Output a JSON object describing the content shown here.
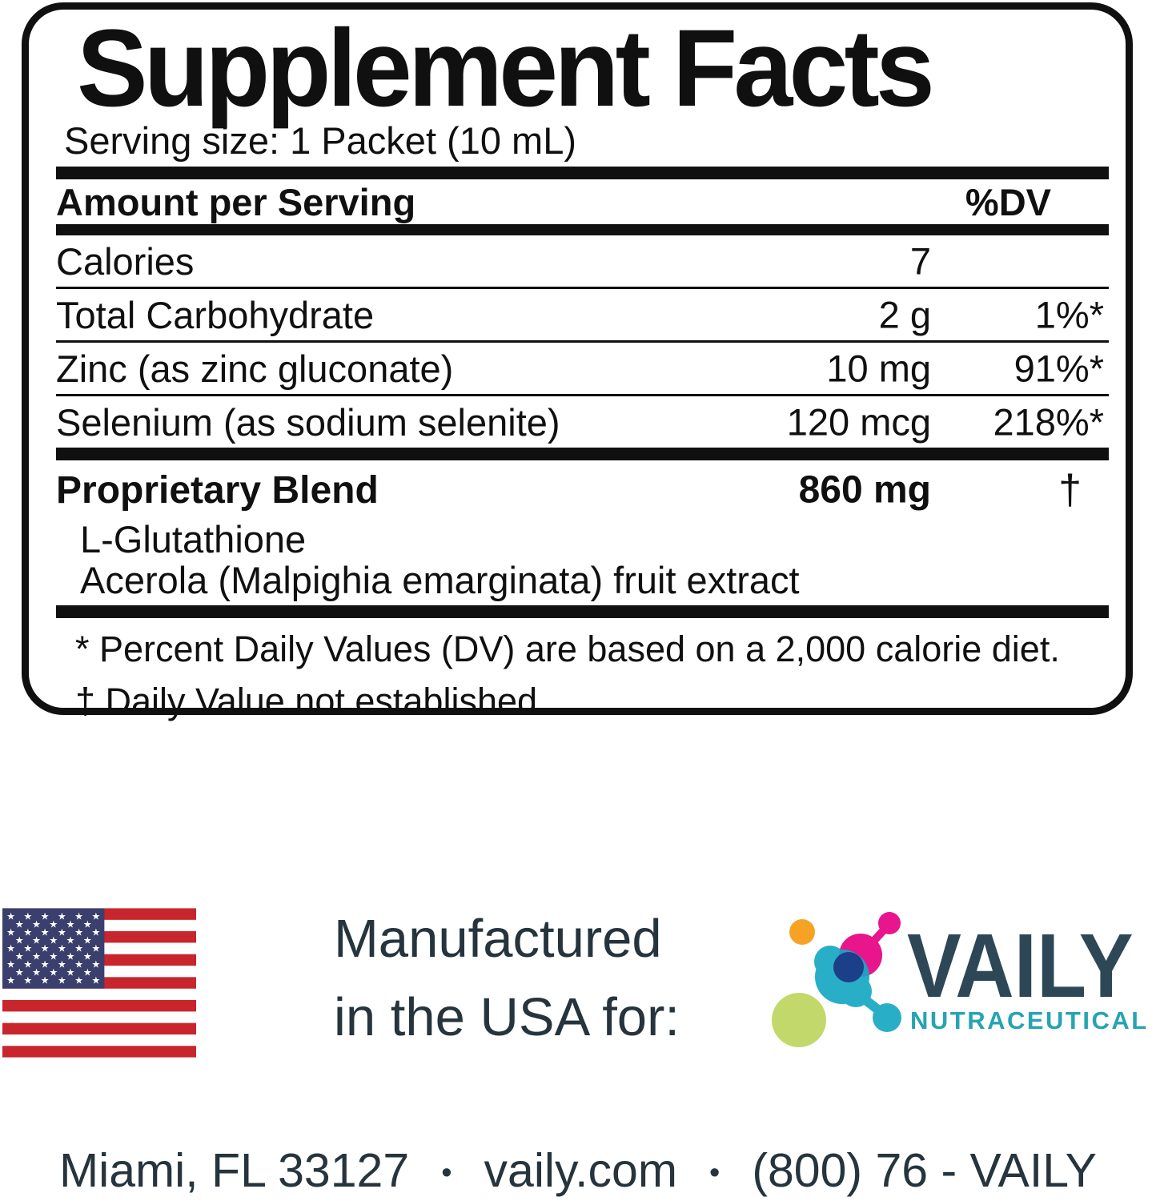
{
  "label": {
    "title": "Supplement Facts",
    "serving_size": "Serving size: 1 Packet (10 mL)",
    "header": {
      "amount_label": "Amount per Serving",
      "dv_label": "%DV"
    },
    "rows": [
      {
        "name": "Calories",
        "amount": "7",
        "dv": ""
      },
      {
        "name": "Total Carbohydrate",
        "amount": "2 g",
        "dv": "1%*"
      },
      {
        "name": "Zinc (as zinc gluconate)",
        "amount": "10 mg",
        "dv": "91%*"
      },
      {
        "name": "Selenium (as sodium selenite)",
        "amount": "120 mcg",
        "dv": "218%*"
      }
    ],
    "proprietary": {
      "name": "Proprietary Blend",
      "amount": "860 mg",
      "dv": "†",
      "ingredients": [
        "L-Glutathione",
        "Acerola (Malpighia emarginata) fruit extract"
      ]
    },
    "footnotes": [
      "* Percent Daily Values (DV) are based on a 2,000 calorie diet.",
      "† Daily Value not established"
    ]
  },
  "manufactured": {
    "line1": "Manufactured",
    "line2": "in the USA for:"
  },
  "brand": {
    "name": "VAILY",
    "subtitle": "NUTRACEUTICAL"
  },
  "footer": {
    "address": "Miami, FL 33127",
    "bullet": "•",
    "website": "vaily.com",
    "phone": "(800) 76 - VAILY"
  },
  "theme": {
    "label-ink": "#101010",
    "text-dark": "#25343d",
    "brand-dark": "#2e4757",
    "brand-teal": "#26a3b4",
    "flag-red": "#c8252c",
    "flag-navy": "#3a3f6e",
    "logo-orange": "#f6a325",
    "logo-magenta": "#e8158c",
    "logo-teal": "#17a8c4",
    "logo-navy": "#1a3a85",
    "logo-green": "#c3d86b"
  }
}
